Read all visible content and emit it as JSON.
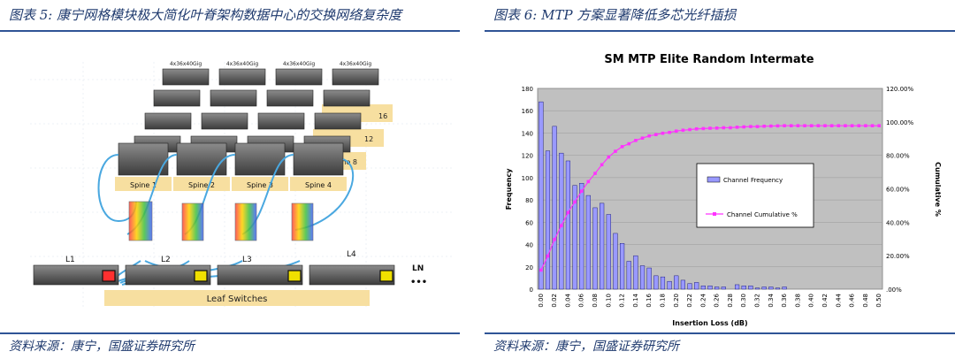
{
  "left": {
    "caption": "图表 5:  康宁网格模块极大简化叶脊架构数据中心的交换网络复杂度",
    "source": "资料来源：康宁，国盛证券研究所",
    "diagram": {
      "spine_model_label": "4x36x40Gig",
      "spine_labels": [
        "Spine 1",
        "Spine 2",
        "Spine 3",
        "Spine 4"
      ],
      "stack_labels": [
        "Spine 8",
        "12",
        "16"
      ],
      "leaf_labels": [
        "L1",
        "L2",
        "L3",
        "L4",
        "LN"
      ],
      "leaf_more": "•••",
      "leaf_caption": "Leaf Switches"
    }
  },
  "right": {
    "caption": "图表 6:  MTP 方案显著降低多芯光纤插损",
    "source": "资料来源：康宁，国盛证券研究所",
    "chart_data": {
      "type": "bar",
      "title": "SM MTP Elite Random Intermate",
      "xlabel": "Insertion Loss (dB)",
      "ylabel": "Frequency",
      "y2label": "Cumulative %",
      "ylim": [
        0,
        180
      ],
      "y2lim": [
        0,
        120
      ],
      "yticks": [
        "0",
        "20",
        "40",
        "60",
        "80",
        "100",
        "120",
        "140",
        "160",
        "180"
      ],
      "y2ticks": [
        ".00%",
        "20.00%",
        "40.00%",
        "60.00%",
        "80.00%",
        "100.00%",
        "120.00%"
      ],
      "categories": [
        "0.00",
        "0.01",
        "0.02",
        "0.03",
        "0.04",
        "0.05",
        "0.06",
        "0.07",
        "0.08",
        "0.09",
        "0.10",
        "0.11",
        "0.12",
        "0.13",
        "0.14",
        "0.15",
        "0.16",
        "0.17",
        "0.18",
        "0.19",
        "0.20",
        "0.21",
        "0.22",
        "0.23",
        "0.24",
        "0.25",
        "0.26",
        "0.27",
        "0.28",
        "0.29",
        "0.30",
        "0.31",
        "0.32",
        "0.33",
        "0.34",
        "0.35",
        "0.36",
        "0.37",
        "0.38",
        "0.39",
        "0.40",
        "0.41",
        "0.42",
        "0.43",
        "0.44",
        "0.45",
        "0.46",
        "0.47",
        "0.48",
        "0.49",
        "0.50"
      ],
      "tick_labels": [
        "0.00",
        "0.02",
        "0.04",
        "0.06",
        "0.08",
        "0.10",
        "0.12",
        "0.14",
        "0.16",
        "0.18",
        "0.20",
        "0.22",
        "0.24",
        "0.26",
        "0.28",
        "0.30",
        "0.32",
        "0.34",
        "0.36",
        "0.38",
        "0.40",
        "0.42",
        "0.44",
        "0.46",
        "0.48",
        "0.50"
      ],
      "series": [
        {
          "name": "Channel Frequency",
          "axis": "left",
          "color": "#9999ff",
          "values": [
            168,
            124,
            146,
            122,
            115,
            93,
            95,
            84,
            73,
            77,
            67,
            50,
            41,
            25,
            30,
            21,
            19,
            12,
            11,
            7,
            12,
            8,
            5,
            6,
            3,
            3,
            2,
            2,
            0,
            4,
            3,
            3,
            1,
            2,
            2,
            1,
            2,
            0,
            0,
            0,
            0,
            0,
            0,
            0,
            0,
            0,
            0,
            0,
            0,
            0,
            0
          ]
        },
        {
          "name": "Channel Cumulative %",
          "axis": "right",
          "color": "#ff33ff",
          "values": [
            11.4,
            19.8,
            29.7,
            38.0,
            45.8,
            52.1,
            58.6,
            64.3,
            69.2,
            74.4,
            79.0,
            82.4,
            85.2,
            86.9,
            88.9,
            90.3,
            91.6,
            92.4,
            93.2,
            93.7,
            94.5,
            95.0,
            95.4,
            95.8,
            96.0,
            96.2,
            96.3,
            96.5,
            96.5,
            96.8,
            97.0,
            97.2,
            97.2,
            97.4,
            97.5,
            97.6,
            97.7,
            97.7,
            97.7,
            97.7,
            97.7,
            97.7,
            97.7,
            97.7,
            97.7,
            97.7,
            97.7,
            97.7,
            97.7,
            97.7,
            97.7
          ]
        }
      ],
      "legend_position": "center-right",
      "plot_background": "#c0c0c0"
    }
  }
}
